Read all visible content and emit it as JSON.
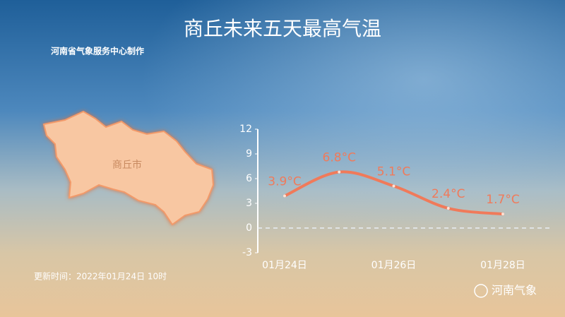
{
  "chart_data": {
    "type": "line",
    "title": "商丘未来五天最高气温",
    "subtitle": "河南省气象服务中心制作",
    "categories": [
      "01月24日",
      null,
      "01月26日",
      null,
      "01月28日"
    ],
    "series": [
      {
        "name": "最高气温",
        "color": "#f07a5a",
        "values": [
          3.9,
          6.8,
          5.1,
          2.4,
          1.7
        ],
        "value_labels": [
          "3.9°C",
          "6.8°C",
          "5.1°C",
          "2.4°C",
          "1.7°C"
        ]
      }
    ],
    "ylim": [
      -3,
      12
    ],
    "yticks": [
      -3,
      0,
      3,
      6,
      9,
      12
    ]
  },
  "map_label": "商丘市",
  "update_time": "更新时间：2022年01月24日 10时",
  "watermark": "河南气象"
}
